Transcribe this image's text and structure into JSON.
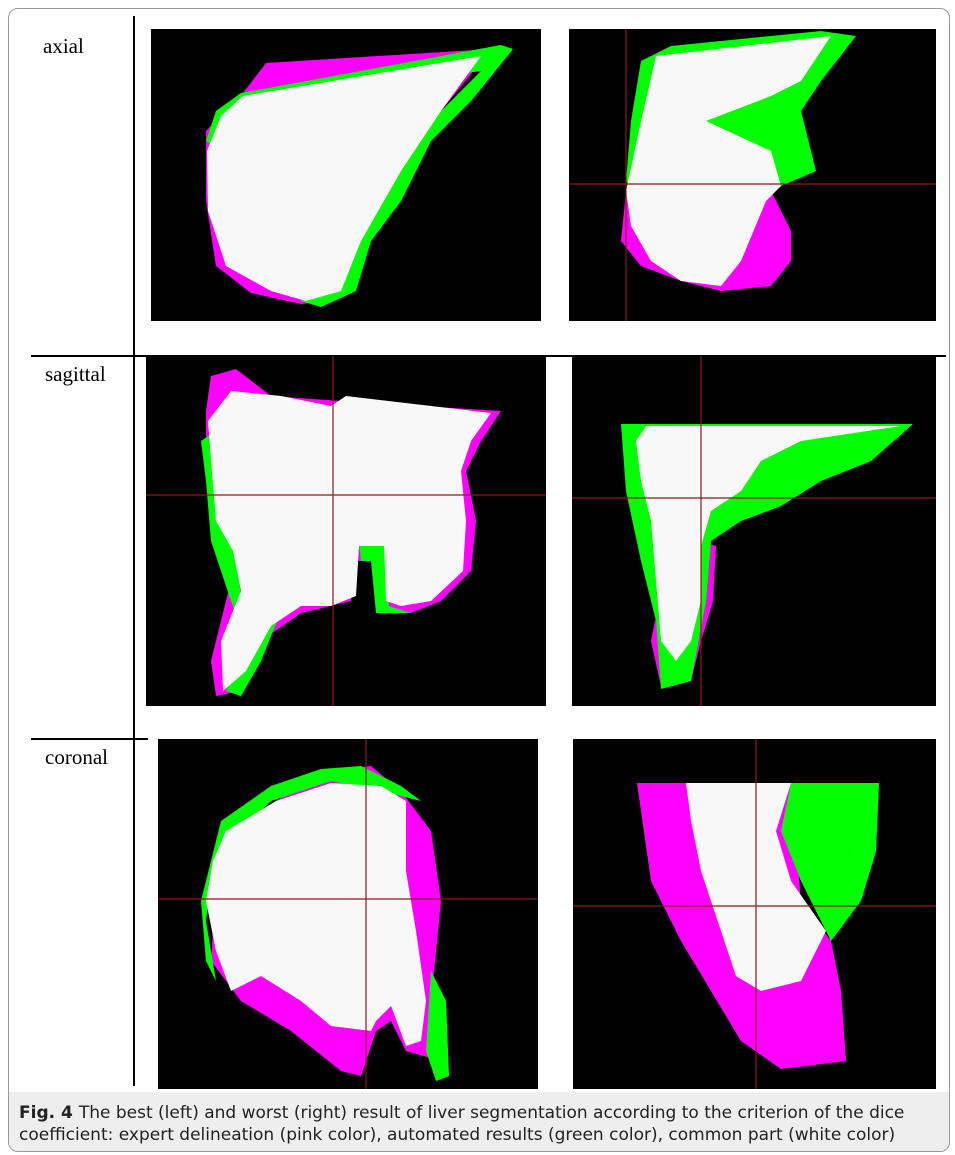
{
  "rows": [
    {
      "label": "axial"
    },
    {
      "label": "sagittal"
    },
    {
      "label": "coronal"
    }
  ],
  "caption": {
    "label": "Fig. 4",
    "text": "The best (left) and worst (right) result of liver segmentation according to the criterion of the dice coefficient: expert delineation (pink color), automated results (green color), common part (white color)"
  }
}
